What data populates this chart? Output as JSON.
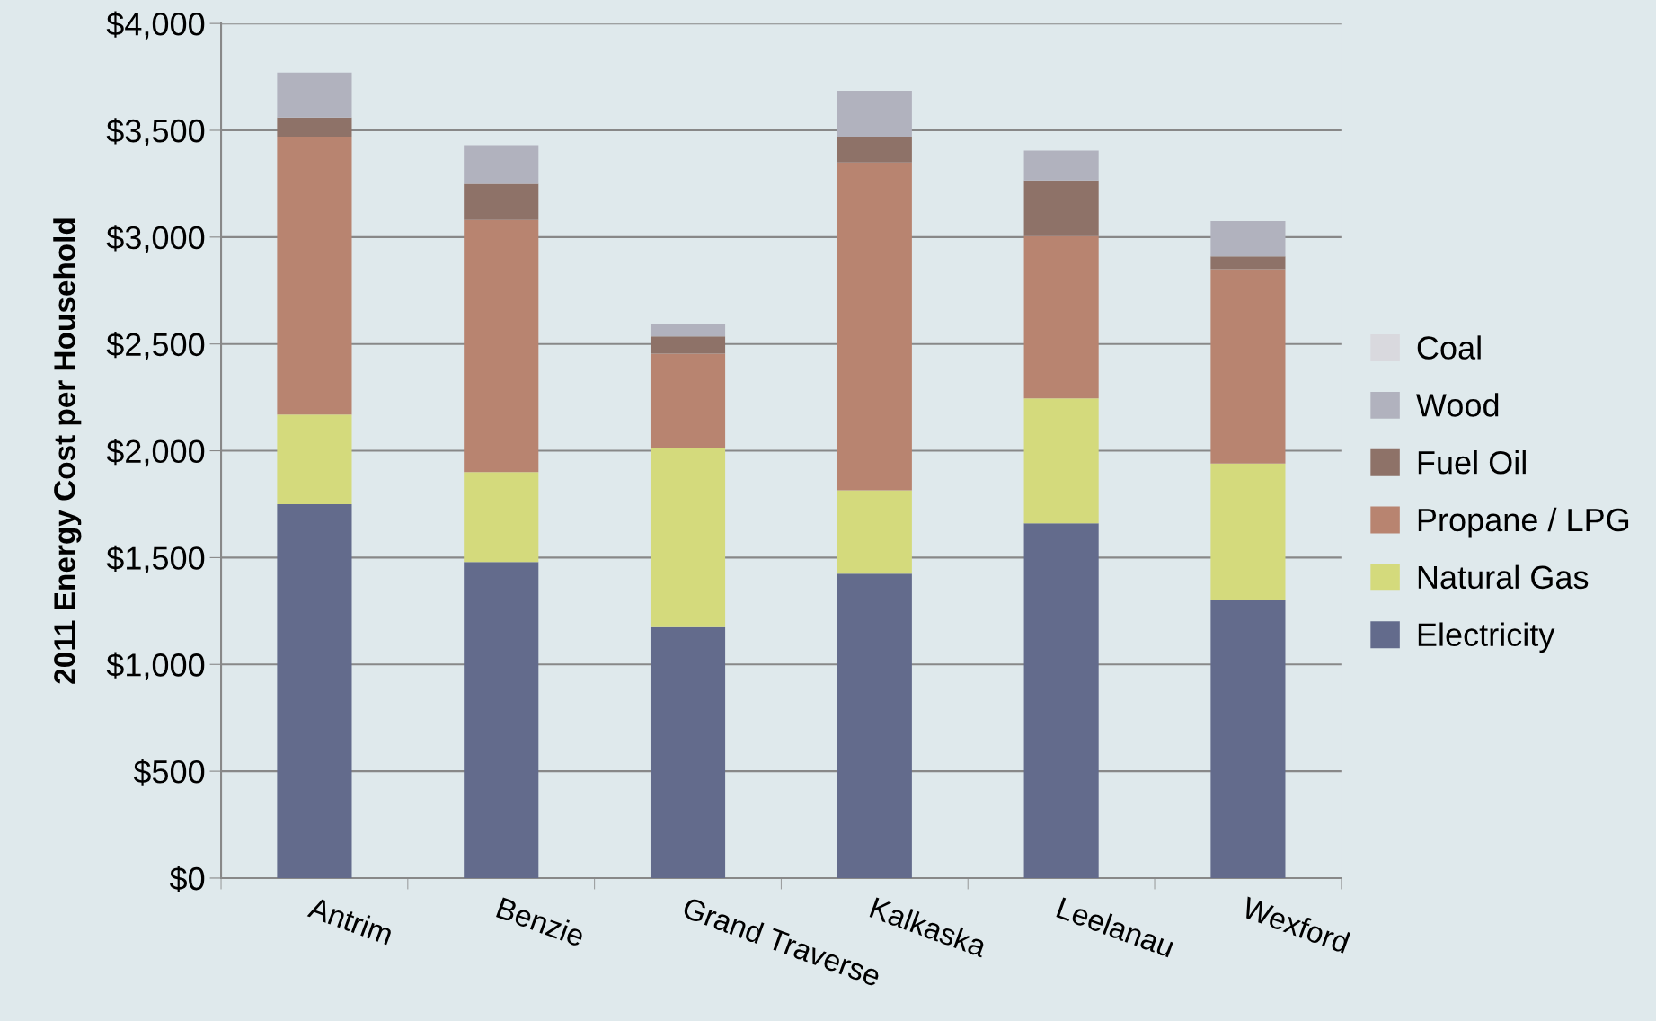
{
  "chart_data": {
    "type": "bar",
    "stacked": true,
    "ylabel": "2011 Energy Cost per Household",
    "categories": [
      "Antrim",
      "Benzie",
      "Grand Traverse",
      "Kalkaska",
      "Leelanau",
      "Wexford"
    ],
    "series": [
      {
        "name": "Electricity",
        "color": "#636b8c",
        "values": [
          1750,
          1480,
          1175,
          1425,
          1660,
          1300
        ]
      },
      {
        "name": "Natural Gas",
        "color": "#d4da7c",
        "values": [
          420,
          420,
          840,
          390,
          585,
          640
        ]
      },
      {
        "name": "Propane / LPG",
        "color": "#b88470",
        "values": [
          1300,
          1180,
          440,
          1535,
          760,
          910
        ]
      },
      {
        "name": "Fuel Oil",
        "color": "#8e7268",
        "values": [
          90,
          170,
          80,
          120,
          260,
          60
        ]
      },
      {
        "name": "Wood",
        "color": "#b1b2be",
        "values": [
          210,
          180,
          60,
          215,
          140,
          165
        ]
      },
      {
        "name": "Coal",
        "color": "#d9d9de",
        "values": [
          0,
          0,
          0,
          0,
          0,
          0
        ]
      }
    ],
    "ylim": [
      0,
      4000
    ],
    "yticks": [
      {
        "value": 0,
        "label": "$0"
      },
      {
        "value": 500,
        "label": "$500"
      },
      {
        "value": 1000,
        "label": "$1,000"
      },
      {
        "value": 1500,
        "label": "$1,500"
      },
      {
        "value": 2000,
        "label": "$2,000"
      },
      {
        "value": 2500,
        "label": "$2,500"
      },
      {
        "value": 3000,
        "label": "$3,000"
      },
      {
        "value": 3500,
        "label": "$3,500"
      },
      {
        "value": 4000,
        "label": "$4,000"
      }
    ],
    "grid": "y",
    "legend": "right"
  }
}
